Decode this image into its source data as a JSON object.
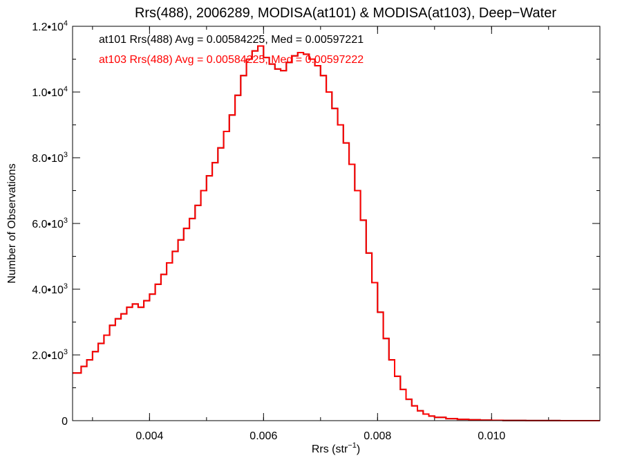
{
  "chart_data": {
    "type": "line",
    "title": "Rrs(488), 2006289, MODISA(at101) & MODISA(at103), Deep−Water",
    "xlabel": {
      "text": "Rrs (str",
      "sup": "−1",
      "suffix": ")"
    },
    "ylabel": "Number of Observations",
    "xlim": [
      0.00265,
      0.0119
    ],
    "ylim": [
      0,
      12000
    ],
    "x_ticks": [
      {
        "value": 0.004,
        "label": "0.004"
      },
      {
        "value": 0.006,
        "label": "0.006"
      },
      {
        "value": 0.008,
        "label": "0.008"
      },
      {
        "value": 0.01,
        "label": "0.010"
      }
    ],
    "y_ticks": [
      {
        "value": 0,
        "base": "0",
        "exp": ""
      },
      {
        "value": 2000,
        "base": "2.0•10",
        "exp": "3"
      },
      {
        "value": 4000,
        "base": "4.0•10",
        "exp": "3"
      },
      {
        "value": 6000,
        "base": "6.0•10",
        "exp": "3"
      },
      {
        "value": 8000,
        "base": "8.0•10",
        "exp": "3"
      },
      {
        "value": 10000,
        "base": "1.0•10",
        "exp": "4"
      },
      {
        "value": 12000,
        "base": "1.2•10",
        "exp": "4"
      }
    ],
    "legend": [
      {
        "text": "at101 Rrs(488) Avg = 0.00584225, Med = 0.00597221",
        "color": "#000000"
      },
      {
        "text": "at103 Rrs(488) Avg = 0.00584225, Med = 0.00597222",
        "color": "#ff0000"
      }
    ],
    "series": [
      {
        "color": "#000000",
        "x": [
          0.00265,
          0.0028,
          0.0029,
          0.003,
          0.0031,
          0.0032,
          0.0033,
          0.0034,
          0.0035,
          0.0036,
          0.0037,
          0.0038,
          0.0039,
          0.004,
          0.0041,
          0.0042,
          0.0043,
          0.0044,
          0.0045,
          0.0046,
          0.0047,
          0.0048,
          0.0049,
          0.005,
          0.0051,
          0.0052,
          0.0053,
          0.0054,
          0.0055,
          0.0056,
          0.0057,
          0.0058,
          0.0059,
          0.006,
          0.0061,
          0.0062,
          0.0063,
          0.0064,
          0.0065,
          0.0066,
          0.0067,
          0.0068,
          0.0069,
          0.007,
          0.0071,
          0.0072,
          0.0073,
          0.0074,
          0.0075,
          0.0076,
          0.0077,
          0.0078,
          0.0079,
          0.008,
          0.0081,
          0.0082,
          0.0083,
          0.0084,
          0.0085,
          0.0086,
          0.0087,
          0.0088,
          0.0089,
          0.009,
          0.0092,
          0.0094,
          0.0096,
          0.0098,
          0.01,
          0.0102,
          0.0104,
          0.0106,
          0.0108,
          0.011,
          0.0112,
          0.0114,
          0.0116,
          0.0119
        ],
        "y": [
          1450,
          1650,
          1850,
          2100,
          2350,
          2600,
          2900,
          3100,
          3250,
          3450,
          3550,
          3450,
          3650,
          3850,
          4150,
          4450,
          4800,
          5150,
          5500,
          5850,
          6150,
          6550,
          7000,
          7450,
          7850,
          8300,
          8800,
          9300,
          9900,
          10500,
          11000,
          11250,
          11400,
          11050,
          10850,
          10700,
          10650,
          10900,
          11100,
          11200,
          11150,
          11000,
          10800,
          10500,
          10000,
          9500,
          9000,
          8450,
          7800,
          7000,
          6100,
          5100,
          4200,
          3300,
          2500,
          1850,
          1350,
          950,
          650,
          450,
          300,
          200,
          140,
          100,
          60,
          40,
          25,
          15,
          10,
          6,
          4,
          3,
          2,
          2,
          1,
          1,
          1,
          1
        ]
      },
      {
        "color": "#ff0000",
        "x": [
          0.00265,
          0.0028,
          0.0029,
          0.003,
          0.0031,
          0.0032,
          0.0033,
          0.0034,
          0.0035,
          0.0036,
          0.0037,
          0.0038,
          0.0039,
          0.004,
          0.0041,
          0.0042,
          0.0043,
          0.0044,
          0.0045,
          0.0046,
          0.0047,
          0.0048,
          0.0049,
          0.005,
          0.0051,
          0.0052,
          0.0053,
          0.0054,
          0.0055,
          0.0056,
          0.0057,
          0.0058,
          0.0059,
          0.006,
          0.0061,
          0.0062,
          0.0063,
          0.0064,
          0.0065,
          0.0066,
          0.0067,
          0.0068,
          0.0069,
          0.007,
          0.0071,
          0.0072,
          0.0073,
          0.0074,
          0.0075,
          0.0076,
          0.0077,
          0.0078,
          0.0079,
          0.008,
          0.0081,
          0.0082,
          0.0083,
          0.0084,
          0.0085,
          0.0086,
          0.0087,
          0.0088,
          0.0089,
          0.009,
          0.0092,
          0.0094,
          0.0096,
          0.0098,
          0.01,
          0.0102,
          0.0104,
          0.0106,
          0.0108,
          0.011,
          0.0112,
          0.0114,
          0.0116,
          0.0119
        ],
        "y": [
          1450,
          1650,
          1850,
          2100,
          2350,
          2600,
          2900,
          3100,
          3250,
          3450,
          3550,
          3450,
          3650,
          3850,
          4150,
          4450,
          4800,
          5150,
          5500,
          5850,
          6150,
          6550,
          7000,
          7450,
          7850,
          8300,
          8800,
          9300,
          9900,
          10500,
          11000,
          11250,
          11400,
          11050,
          10850,
          10700,
          10650,
          10900,
          11100,
          11200,
          11150,
          11000,
          10800,
          10500,
          10000,
          9500,
          9000,
          8450,
          7800,
          7000,
          6100,
          5100,
          4200,
          3300,
          2500,
          1850,
          1350,
          950,
          650,
          450,
          300,
          200,
          140,
          100,
          60,
          40,
          25,
          15,
          10,
          6,
          4,
          3,
          2,
          2,
          1,
          1,
          1,
          1
        ]
      }
    ]
  }
}
